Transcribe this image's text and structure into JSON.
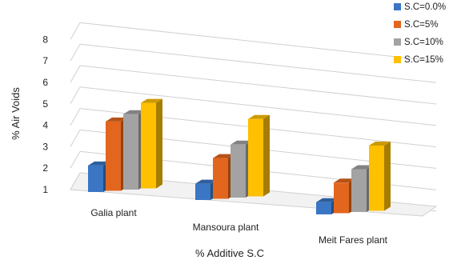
{
  "chart_data": {
    "type": "bar",
    "categories": [
      "Galia plant",
      "Mansoura plant",
      "Meit Fares plant"
    ],
    "series": [
      {
        "name": "S.C=0.0%",
        "values": [
          1.3,
          0.8,
          0.6
        ],
        "color": "#3a76c4"
      },
      {
        "name": "S.C=5%",
        "values": [
          3.4,
          2.0,
          1.5
        ],
        "color": "#e2661d"
      },
      {
        "name": "S.C=10%",
        "values": [
          3.7,
          2.6,
          2.1
        ],
        "color": "#a3a3a3"
      },
      {
        "name": "S.C=15%",
        "values": [
          4.2,
          3.8,
          3.2
        ],
        "color": "#ffc000"
      }
    ],
    "ylabel": "% Air Voids",
    "xlabel": "% Additive S.C",
    "yticks": [
      1,
      2,
      3,
      4,
      5,
      6,
      7,
      8
    ],
    "ylim": [
      1,
      8
    ],
    "grid": true,
    "legend": "top-right",
    "three_d": true
  }
}
